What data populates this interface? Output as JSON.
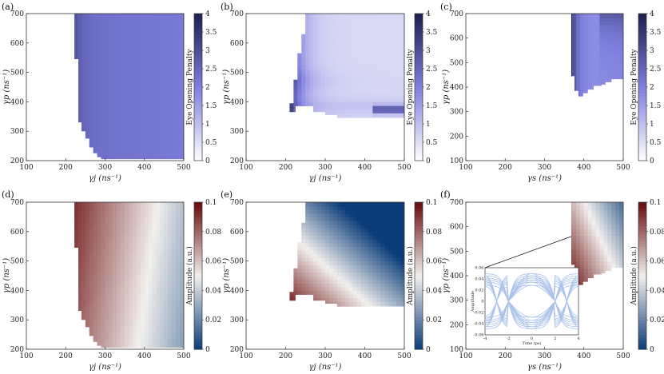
{
  "colors": {
    "blue_cmap_low": "#ffffff",
    "blue_cmap_mid": "#7f7fdf",
    "blue_cmap_high": "#1c1f4f",
    "div_cmap_low": "#0a3c78",
    "div_cmap_mid": "#f2f0ee",
    "div_cmap_high": "#670a0a",
    "eye_trace": "#a9c2e9"
  },
  "chart_data": [
    {
      "panel": "(a)",
      "type": "heatmap",
      "xlabel": "γj (ns⁻¹)",
      "ylabel": "γp (ns⁻¹)",
      "xlim": [
        100,
        500
      ],
      "ylim": [
        200,
        700
      ],
      "xticks": [
        "100",
        "200",
        "300",
        "400",
        "500"
      ],
      "yticks": [
        "200",
        "300",
        "400",
        "500",
        "600",
        "700"
      ],
      "colorbar": {
        "label": "Eye Opening Penalty",
        "range": [
          0,
          4
        ],
        "ticks": [
          "0",
          "0.5",
          "1",
          "1.5",
          "2",
          "2.5",
          "3",
          "3.5",
          "4"
        ],
        "colormap": "blue"
      },
      "boundary": [
        [
          222,
          700
        ],
        [
          222,
          545
        ],
        [
          232,
          545
        ],
        [
          232,
          330
        ],
        [
          240,
          330
        ],
        [
          240,
          300
        ],
        [
          250,
          300
        ],
        [
          250,
          275
        ],
        [
          260,
          275
        ],
        [
          260,
          245
        ],
        [
          270,
          245
        ],
        [
          270,
          225
        ],
        [
          280,
          225
        ],
        [
          280,
          212
        ],
        [
          290,
          212
        ],
        [
          290,
          205
        ],
        [
          500,
          205
        ]
      ]
    },
    {
      "panel": "(b)",
      "type": "heatmap",
      "xlabel": "γj (ns⁻¹)",
      "ylabel": "γp (ns⁻¹)",
      "xlim": [
        100,
        500
      ],
      "ylim": [
        200,
        700
      ],
      "xticks": [
        "100",
        "200",
        "300",
        "400",
        "500"
      ],
      "yticks": [
        "200",
        "300",
        "400",
        "500",
        "600",
        "700"
      ],
      "colorbar": {
        "label": "Eye Opening Penalty",
        "range": [
          0,
          4
        ],
        "ticks": [
          "0",
          "0.5",
          "1",
          "1.5",
          "2",
          "2.5",
          "3",
          "3.5",
          "4"
        ],
        "colormap": "blue"
      },
      "boundary": [
        [
          250,
          700
        ],
        [
          250,
          630
        ],
        [
          240,
          630
        ],
        [
          240,
          565
        ],
        [
          230,
          565
        ],
        [
          230,
          475
        ],
        [
          220,
          475
        ],
        [
          220,
          395
        ],
        [
          210,
          395
        ],
        [
          210,
          365
        ],
        [
          225,
          365
        ],
        [
          225,
          385
        ],
        [
          270,
          385
        ],
        [
          270,
          365
        ],
        [
          300,
          365
        ],
        [
          300,
          355
        ],
        [
          330,
          355
        ],
        [
          330,
          345
        ],
        [
          500,
          345
        ]
      ]
    },
    {
      "panel": "(c)",
      "type": "heatmap",
      "xlabel": "γs (ns⁻¹)",
      "ylabel": "γp (ns⁻¹)",
      "xlim": [
        100,
        500
      ],
      "ylim": [
        100,
        700
      ],
      "xticks": [
        "100",
        "200",
        "300",
        "400",
        "500"
      ],
      "yticks": [
        "100",
        "200",
        "300",
        "400",
        "500",
        "600",
        "700"
      ],
      "colorbar": {
        "label": "Eye Opening Penalty",
        "range": [
          0,
          4
        ],
        "ticks": [
          "0",
          "0.5",
          "1",
          "1.5",
          "2",
          "2.5",
          "3",
          "3.5",
          "4"
        ],
        "colormap": "blue"
      },
      "boundary": [
        [
          368,
          700
        ],
        [
          368,
          445
        ],
        [
          376,
          445
        ],
        [
          376,
          385
        ],
        [
          386,
          385
        ],
        [
          386,
          362
        ],
        [
          398,
          362
        ],
        [
          398,
          375
        ],
        [
          410,
          375
        ],
        [
          410,
          390
        ],
        [
          425,
          390
        ],
        [
          425,
          405
        ],
        [
          445,
          405
        ],
        [
          445,
          410
        ],
        [
          455,
          410
        ],
        [
          455,
          420
        ],
        [
          470,
          420
        ],
        [
          470,
          432
        ],
        [
          500,
          432
        ]
      ]
    },
    {
      "panel": "(d)",
      "type": "heatmap",
      "xlabel": "γj (ns⁻¹)",
      "ylabel": "γp (ns⁻¹)",
      "xlim": [
        100,
        500
      ],
      "ylim": [
        200,
        700
      ],
      "xticks": [
        "100",
        "200",
        "300",
        "400",
        "500"
      ],
      "yticks": [
        "200",
        "300",
        "400",
        "500",
        "600",
        "700"
      ],
      "colorbar": {
        "label": "Amplitude (a.u.)",
        "range": [
          0,
          0.1
        ],
        "ticks": [
          "0",
          "0.02",
          "0.04",
          "0.06",
          "0.08",
          "0.1"
        ],
        "colormap": "diverging"
      },
      "boundary": [
        [
          222,
          700
        ],
        [
          222,
          545
        ],
        [
          232,
          545
        ],
        [
          232,
          330
        ],
        [
          240,
          330
        ],
        [
          240,
          300
        ],
        [
          250,
          300
        ],
        [
          250,
          275
        ],
        [
          260,
          275
        ],
        [
          260,
          245
        ],
        [
          270,
          245
        ],
        [
          270,
          225
        ],
        [
          280,
          225
        ],
        [
          280,
          212
        ],
        [
          290,
          212
        ],
        [
          290,
          205
        ],
        [
          500,
          205
        ]
      ]
    },
    {
      "panel": "(e)",
      "type": "heatmap",
      "xlabel": "γj (ns⁻¹)",
      "ylabel": "γp (ns⁻¹)",
      "xlim": [
        100,
        500
      ],
      "ylim": [
        200,
        700
      ],
      "xticks": [
        "100",
        "200",
        "300",
        "400",
        "500"
      ],
      "yticks": [
        "200",
        "300",
        "400",
        "500",
        "600",
        "700"
      ],
      "colorbar": {
        "label": "Amplitude (a.u.)",
        "range": [
          0,
          0.1
        ],
        "ticks": [
          "0",
          "0.02",
          "0.04",
          "0.06",
          "0.08",
          "0.1"
        ],
        "colormap": "diverging"
      },
      "boundary": [
        [
          250,
          700
        ],
        [
          250,
          630
        ],
        [
          240,
          630
        ],
        [
          240,
          565
        ],
        [
          230,
          565
        ],
        [
          230,
          475
        ],
        [
          220,
          475
        ],
        [
          220,
          395
        ],
        [
          210,
          395
        ],
        [
          210,
          365
        ],
        [
          225,
          365
        ],
        [
          225,
          385
        ],
        [
          270,
          385
        ],
        [
          270,
          365
        ],
        [
          300,
          365
        ],
        [
          300,
          355
        ],
        [
          330,
          355
        ],
        [
          330,
          345
        ],
        [
          500,
          345
        ]
      ]
    },
    {
      "panel": "(f)",
      "type": "heatmap",
      "xlabel": "γs (ns⁻¹)",
      "ylabel": "γp (ns⁻¹)",
      "xlim": [
        100,
        500
      ],
      "ylim": [
        100,
        700
      ],
      "xticks": [
        "100",
        "200",
        "300",
        "400",
        "500"
      ],
      "yticks": [
        "100",
        "200",
        "300",
        "400",
        "500",
        "600",
        "700"
      ],
      "colorbar": {
        "label": "Amplitude (a.u.)",
        "range": [
          0,
          0.1
        ],
        "ticks": [
          "0",
          "0.02",
          "0.04",
          "0.06",
          "0.08",
          "0.1"
        ],
        "colormap": "diverging"
      },
      "boundary": [
        [
          368,
          700
        ],
        [
          368,
          445
        ],
        [
          376,
          445
        ],
        [
          376,
          385
        ],
        [
          386,
          385
        ],
        [
          386,
          362
        ],
        [
          398,
          362
        ],
        [
          398,
          375
        ],
        [
          410,
          375
        ],
        [
          410,
          390
        ],
        [
          425,
          390
        ],
        [
          425,
          405
        ],
        [
          445,
          405
        ],
        [
          445,
          410
        ],
        [
          455,
          410
        ],
        [
          455,
          420
        ],
        [
          470,
          420
        ],
        [
          470,
          432
        ],
        [
          500,
          432
        ]
      ],
      "inset": {
        "type": "line",
        "xlabel": "Time (ps)",
        "ylabel": "Amplitude",
        "xlim": [
          -4,
          4
        ],
        "ylim": [
          -0.06,
          0.06
        ],
        "xticks": [
          "-4",
          "-2",
          "0",
          "2",
          "4"
        ],
        "yticks": [
          "-0.06",
          "-0.04",
          "-0.02",
          "0",
          "0.02",
          "0.04",
          "0.06"
        ],
        "points_to": [
          368,
          560
        ]
      }
    }
  ]
}
